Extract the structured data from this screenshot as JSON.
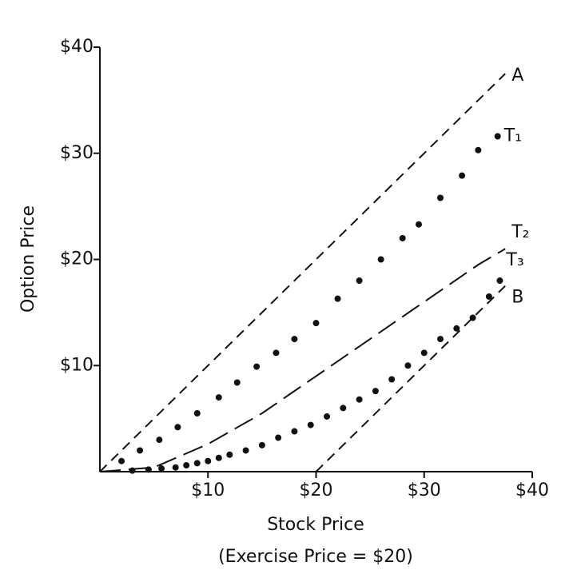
{
  "chart_data": {
    "type": "line",
    "x_label": "Stock Price",
    "y_label": "Option Price",
    "note": "(Exercise Price = $20)",
    "xlim": [
      0,
      40
    ],
    "ylim": [
      0,
      40
    ],
    "xticks": [
      {
        "value": 10,
        "label": "$10"
      },
      {
        "value": 20,
        "label": "$20"
      },
      {
        "value": 30,
        "label": "$30"
      },
      {
        "value": 40,
        "label": "$40"
      }
    ],
    "yticks": [
      {
        "value": 10,
        "label": "$10"
      },
      {
        "value": 20,
        "label": "$20"
      },
      {
        "value": 30,
        "label": "$30"
      },
      {
        "value": 40,
        "label": "$40"
      }
    ],
    "series": [
      {
        "name": "A",
        "color": "#111111",
        "style": "dashed",
        "x": [
          0,
          37.5
        ],
        "values": [
          0,
          37.5
        ]
      },
      {
        "name": "T₁",
        "color": "#111111",
        "style": "dotted",
        "x": [
          2,
          3.7,
          5.5,
          7.2,
          9,
          11,
          12.7,
          14.5,
          16.3,
          18,
          20,
          22,
          24,
          26,
          28,
          29.5,
          31.5,
          33.5,
          35,
          36.8
        ],
        "values": [
          1,
          2,
          3,
          4.2,
          5.5,
          7,
          8.4,
          9.9,
          11.2,
          12.5,
          14,
          16.3,
          18,
          20,
          22,
          23.3,
          25.8,
          27.9,
          30.3,
          31.6
        ]
      },
      {
        "name": "T₂",
        "color": "#111111",
        "style": "long-dashed",
        "x": [
          0,
          5,
          10,
          15,
          20,
          25,
          30,
          35,
          37.5
        ],
        "values": [
          0,
          0.4,
          2.6,
          5.5,
          9,
          12.5,
          16,
          19.5,
          21
        ]
      },
      {
        "name": "T₃",
        "color": "#111111",
        "style": "dotted",
        "x": [
          3,
          4.5,
          5.7,
          7,
          8,
          9,
          10,
          11,
          12,
          13.5,
          15,
          16.5,
          18,
          19.5,
          21,
          22.5,
          24,
          25.5,
          27,
          28.5,
          30,
          31.5,
          33,
          34.5,
          36,
          37
        ],
        "values": [
          0.1,
          0.2,
          0.3,
          0.4,
          0.6,
          0.8,
          1,
          1.3,
          1.6,
          2,
          2.5,
          3.2,
          3.8,
          4.4,
          5.2,
          6,
          6.8,
          7.6,
          8.7,
          10,
          11.2,
          12.5,
          13.5,
          14.5,
          16.5,
          18
        ]
      },
      {
        "name": "B",
        "color": "#111111",
        "style": "dashed",
        "x": [
          20,
          37.5
        ],
        "values": [
          0,
          17.5
        ]
      }
    ]
  }
}
